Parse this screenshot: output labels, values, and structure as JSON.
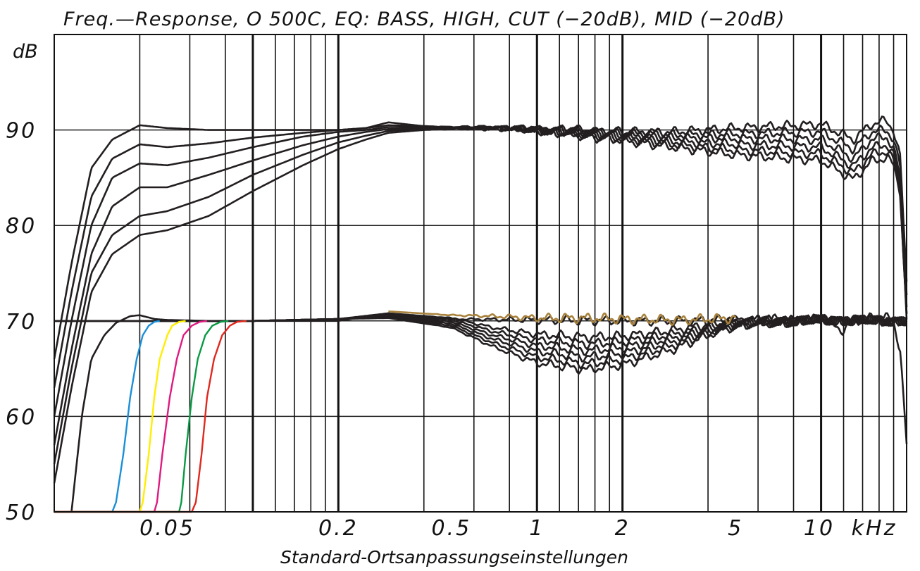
{
  "chart_data": {
    "type": "line",
    "title": "Freq.—Response,  O 500C,  EQ: BASS,  HIGH,  CUT (−20dB),  MID (−20dB)",
    "xlabel": "Standard-Ortsanpassungseinstellungen",
    "ylabel": "dB",
    "x_scale": "log",
    "xlim": [
      0.02,
      20
    ],
    "ylim": [
      50,
      100
    ],
    "grid": true,
    "y_ticks": [
      {
        "value": 50,
        "label": "50"
      },
      {
        "value": 60,
        "label": "60"
      },
      {
        "value": 70,
        "label": "70"
      },
      {
        "value": 80,
        "label": "80"
      },
      {
        "value": 90,
        "label": "90"
      }
    ],
    "x_ticks": [
      {
        "value": 0.05,
        "label": "0.05"
      },
      {
        "value": 0.2,
        "label": "0.2"
      },
      {
        "value": 0.5,
        "label": "0.5"
      },
      {
        "value": 1,
        "label": "1"
      },
      {
        "value": 2,
        "label": "2"
      },
      {
        "value": 5,
        "label": "5"
      },
      {
        "value": 10,
        "label": "10"
      },
      {
        "value": 20,
        "label": "kHz"
      }
    ],
    "colors": {
      "black": "#231f20",
      "blue": "#1b8fd8",
      "yellow": "#ffee00",
      "magenta": "#e0197f",
      "green": "#0a9a44",
      "red": "#e0281e",
      "gold": "#a8823c"
    },
    "series": [
      {
        "group": "bass",
        "color": "black",
        "x": [
          0.02,
          0.023,
          0.027,
          0.032,
          0.04,
          0.05,
          0.07,
          0.1,
          0.15,
          0.2,
          0.25,
          0.3,
          0.4,
          0.5,
          0.7,
          1,
          2,
          3,
          5,
          10,
          13,
          15,
          17,
          18,
          19,
          20
        ],
        "y": [
          66,
          76,
          86,
          89,
          90.5,
          90.2,
          90,
          90,
          90,
          90,
          90.2,
          90.8,
          90.4,
          90.3,
          90.3,
          90.1,
          89.8,
          89.8,
          90.2,
          90.6,
          89,
          90.6,
          91,
          90,
          87,
          74
        ]
      },
      {
        "group": "bass",
        "color": "black",
        "x": [
          0.02,
          0.023,
          0.027,
          0.032,
          0.04,
          0.05,
          0.07,
          0.1,
          0.15,
          0.2,
          0.25,
          0.3,
          0.4,
          0.5,
          0.7,
          1,
          2,
          3,
          5,
          10,
          13,
          15,
          17,
          18,
          19,
          20
        ],
        "y": [
          63,
          73,
          83,
          87,
          88.5,
          88.2,
          88.6,
          89.2,
          89.7,
          90,
          90.2,
          90.5,
          90.4,
          90.3,
          90.3,
          90.1,
          89.7,
          89.5,
          89.6,
          89.8,
          88,
          89.8,
          90,
          89,
          86,
          73
        ]
      },
      {
        "group": "bass",
        "color": "black",
        "x": [
          0.02,
          0.023,
          0.027,
          0.032,
          0.04,
          0.05,
          0.07,
          0.1,
          0.15,
          0.2,
          0.25,
          0.3,
          0.4,
          0.5,
          0.7,
          1,
          2,
          3,
          5,
          10,
          13,
          15,
          17,
          18,
          19,
          20
        ],
        "y": [
          60,
          70,
          80,
          85,
          86.5,
          86.3,
          87.1,
          88.2,
          89.3,
          89.8,
          90,
          90.3,
          90.3,
          90.3,
          90.3,
          90,
          89.5,
          89.2,
          89.1,
          89,
          87,
          89,
          89.3,
          88,
          85,
          72
        ]
      },
      {
        "group": "bass",
        "color": "black",
        "x": [
          0.02,
          0.023,
          0.027,
          0.032,
          0.04,
          0.05,
          0.07,
          0.1,
          0.15,
          0.2,
          0.25,
          0.3,
          0.4,
          0.5,
          0.7,
          1,
          2,
          3,
          5,
          10,
          13,
          15,
          17,
          18,
          19,
          20
        ],
        "y": [
          57,
          67,
          77,
          82,
          84,
          84,
          85.3,
          86.8,
          88.4,
          89.3,
          89.8,
          90.1,
          90.2,
          90.2,
          90.2,
          90,
          89.3,
          88.8,
          88.5,
          88.2,
          86.2,
          88.1,
          88.5,
          87.3,
          84.5,
          71
        ]
      },
      {
        "group": "bass",
        "color": "black",
        "x": [
          0.02,
          0.023,
          0.027,
          0.032,
          0.04,
          0.05,
          0.07,
          0.1,
          0.15,
          0.2,
          0.25,
          0.3,
          0.4,
          0.5,
          0.7,
          1,
          2,
          3,
          5,
          10,
          13,
          15,
          17,
          18,
          19,
          20
        ],
        "y": [
          55,
          65,
          75,
          79,
          81,
          81.5,
          83,
          85.3,
          87.4,
          88.7,
          89.4,
          89.9,
          90.1,
          90.2,
          90.2,
          90,
          89.1,
          88.5,
          87.9,
          87.5,
          85.5,
          87.4,
          87.8,
          86.8,
          84,
          70.5
        ]
      },
      {
        "group": "bass",
        "color": "black",
        "x": [
          0.02,
          0.023,
          0.027,
          0.032,
          0.04,
          0.05,
          0.07,
          0.1,
          0.15,
          0.2,
          0.25,
          0.3,
          0.4,
          0.5,
          0.7,
          1,
          2,
          3,
          5,
          10,
          13,
          15,
          17,
          18,
          19,
          20
        ],
        "y": [
          53,
          63,
          73,
          77,
          79,
          79.5,
          81,
          83.6,
          86.3,
          88,
          89,
          89.7,
          90,
          90.1,
          90.1,
          89.9,
          88.9,
          88.2,
          87.4,
          86.8,
          84.8,
          86.7,
          87.1,
          86.3,
          83.5,
          70
        ]
      },
      {
        "group": "cut",
        "color": "black",
        "x": [
          0.023,
          0.025,
          0.027,
          0.03,
          0.033,
          0.037,
          0.04,
          0.045,
          0.05,
          0.07,
          0.1,
          0.15,
          0.2,
          0.3,
          0.5,
          1,
          2,
          3,
          5,
          10,
          12,
          13,
          15,
          17,
          18,
          19,
          20
        ],
        "y": [
          50,
          60,
          66,
          68.5,
          69.8,
          70.5,
          70.6,
          70.2,
          70.1,
          70,
          70,
          70,
          70,
          70.8,
          70.2,
          70.1,
          70,
          70,
          70.1,
          70.2,
          69,
          70,
          70.3,
          70.4,
          69.8,
          67,
          57
        ]
      },
      {
        "group": "mid",
        "color": "black",
        "x": [
          0.02,
          0.05,
          0.1,
          0.2,
          0.3,
          0.5,
          0.7,
          1,
          1.5,
          2,
          3,
          4,
          5,
          10,
          20
        ],
        "y": [
          70,
          70,
          70,
          70.2,
          70.8,
          70.3,
          69.3,
          68.6,
          68.3,
          68.4,
          69,
          69.6,
          70,
          70.1,
          70
        ]
      },
      {
        "group": "mid",
        "color": "black",
        "x": [
          0.02,
          0.05,
          0.1,
          0.2,
          0.3,
          0.5,
          0.7,
          1,
          1.5,
          2,
          3,
          4,
          5,
          10,
          20
        ],
        "y": [
          70,
          70,
          70,
          70.2,
          70.7,
          70.1,
          68.9,
          68,
          67.6,
          67.8,
          68.6,
          69.3,
          69.9,
          70.1,
          70
        ]
      },
      {
        "group": "mid",
        "color": "black",
        "x": [
          0.02,
          0.05,
          0.1,
          0.2,
          0.3,
          0.5,
          0.7,
          1,
          1.5,
          2,
          3,
          4,
          5,
          10,
          20
        ],
        "y": [
          70,
          70,
          70,
          70.2,
          70.6,
          69.9,
          68.5,
          67.4,
          66.9,
          67.2,
          68.2,
          69.1,
          69.8,
          70.1,
          70
        ]
      },
      {
        "group": "mid",
        "color": "black",
        "x": [
          0.02,
          0.05,
          0.1,
          0.2,
          0.3,
          0.5,
          0.7,
          1,
          1.5,
          2,
          3,
          4,
          5,
          10,
          20
        ],
        "y": [
          70,
          70,
          70,
          70.2,
          70.5,
          69.7,
          68.1,
          66.8,
          66.2,
          66.6,
          67.8,
          68.9,
          69.7,
          70.1,
          70
        ]
      },
      {
        "group": "mid",
        "color": "black",
        "x": [
          0.02,
          0.05,
          0.1,
          0.2,
          0.3,
          0.5,
          0.7,
          1,
          1.5,
          2,
          3,
          4,
          5,
          10,
          20
        ],
        "y": [
          70,
          70,
          70,
          70.2,
          70.4,
          69.5,
          67.7,
          66.2,
          65.5,
          66,
          67.4,
          68.7,
          69.6,
          70.1,
          70
        ]
      },
      {
        "group": "mid",
        "color": "black",
        "x": [
          0.02,
          0.05,
          0.1,
          0.2,
          0.3,
          0.5,
          0.7,
          1,
          1.5,
          2,
          3,
          4,
          5,
          10,
          20
        ],
        "y": [
          70,
          70,
          70,
          70.2,
          70.3,
          69.3,
          67.3,
          65.6,
          64.9,
          65.4,
          67,
          68.5,
          69.5,
          70.1,
          70
        ]
      },
      {
        "group": "mid",
        "color": "gold",
        "x": [
          0.3,
          0.5,
          0.7,
          1,
          1.5,
          2,
          3,
          4,
          5
        ],
        "y": [
          71,
          70.6,
          70.5,
          70.3,
          70.3,
          70.2,
          70.1,
          70.2,
          70.3
        ]
      },
      {
        "group": "highpass",
        "color": "blue",
        "x": [
          0.032,
          0.033,
          0.035,
          0.037,
          0.039,
          0.041,
          0.043,
          0.045,
          0.047
        ],
        "y": [
          50,
          51,
          56,
          62,
          66,
          68.5,
          69.5,
          69.9,
          70
        ]
      },
      {
        "group": "highpass",
        "color": "yellow",
        "x": [
          0.04,
          0.041,
          0.043,
          0.045,
          0.047,
          0.05,
          0.052,
          0.055,
          0.058
        ],
        "y": [
          50,
          51,
          56,
          62,
          66,
          68.5,
          69.5,
          69.9,
          70
        ]
      },
      {
        "group": "highpass",
        "color": "magenta",
        "x": [
          0.045,
          0.046,
          0.048,
          0.051,
          0.054,
          0.057,
          0.061,
          0.065,
          0.069
        ],
        "y": [
          50,
          51,
          56,
          62,
          66,
          68.5,
          69.5,
          69.9,
          70
        ]
      },
      {
        "group": "highpass",
        "color": "green",
        "x": [
          0.055,
          0.056,
          0.058,
          0.061,
          0.064,
          0.068,
          0.072,
          0.077,
          0.082
        ],
        "y": [
          50,
          51,
          56,
          62,
          66,
          68.5,
          69.5,
          69.9,
          70
        ]
      },
      {
        "group": "highpass",
        "color": "red",
        "x": [
          0.061,
          0.063,
          0.066,
          0.069,
          0.073,
          0.078,
          0.083,
          0.088,
          0.095
        ],
        "y": [
          50,
          51,
          56,
          62,
          66,
          68.5,
          69.5,
          69.9,
          70
        ]
      }
    ]
  }
}
